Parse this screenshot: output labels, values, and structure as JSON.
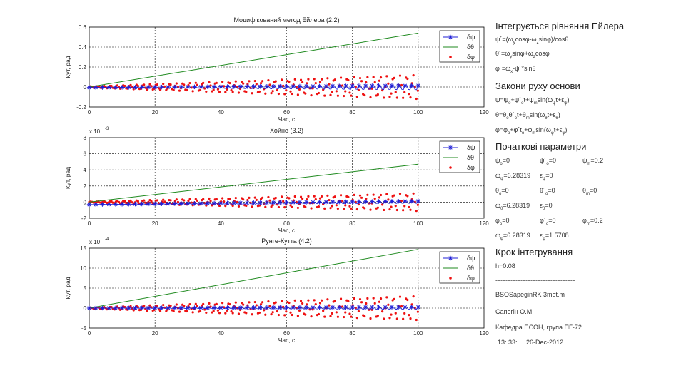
{
  "colors": {
    "dpsi": "#1f1fd6",
    "dtheta": "#1f8a1f",
    "dphi": "#ee1111",
    "grid": "#000000",
    "text": "#222222"
  },
  "chart_data": [
    {
      "type": "line",
      "title": "Модифікований метод Ейлера (2.2)",
      "xlabel": "Час, с",
      "ylabel": "Кут, рад",
      "exponent_label": "",
      "xlim": [
        0,
        120
      ],
      "ylim": [
        -0.2,
        0.6
      ],
      "xticks": [
        "0",
        "20",
        "40",
        "60",
        "80",
        "100",
        "120"
      ],
      "yticks": [
        "-0.2",
        "0",
        "0.2",
        "0.4",
        "0.6"
      ],
      "ytick_values": [
        -0.2,
        0,
        0.2,
        0.4,
        0.6
      ],
      "grid": true,
      "legend_position": "top-right",
      "series": [
        {
          "name": "δψ",
          "marker": "star",
          "x": [
            0,
            100
          ],
          "y": [
            -0.005,
            -0.005
          ],
          "amplitude_end": 0.03
        },
        {
          "name": "δθ",
          "marker": "none",
          "x": [
            0,
            100
          ],
          "y": [
            0.0,
            0.54
          ]
        },
        {
          "name": "δφ",
          "marker": "dot",
          "x": [
            0,
            100
          ],
          "y": [
            0.0,
            0.0
          ],
          "amplitude_end": 0.12
        }
      ]
    },
    {
      "type": "line",
      "title": "Хойне (3.2)",
      "xlabel": "Час, с",
      "ylabel": "Кут, рад",
      "exponent_label": "x 10",
      "exponent_power": "-3",
      "xlim": [
        0,
        120
      ],
      "ylim": [
        -2,
        8
      ],
      "xticks": [
        "0",
        "20",
        "40",
        "60",
        "80",
        "100",
        "120"
      ],
      "yticks": [
        "-2",
        "0",
        "2",
        "4",
        "6",
        "8"
      ],
      "ytick_values": [
        -2,
        0,
        2,
        4,
        6,
        8
      ],
      "grid": true,
      "legend_position": "top-right",
      "series": [
        {
          "name": "δψ",
          "marker": "star",
          "x": [
            0,
            100
          ],
          "y": [
            -0.3,
            0.0
          ],
          "amplitude_end": 0.2
        },
        {
          "name": "δθ",
          "marker": "none",
          "x": [
            0,
            100
          ],
          "y": [
            0.0,
            4.7
          ]
        },
        {
          "name": "δφ",
          "marker": "dot",
          "x": [
            0,
            100
          ],
          "y": [
            0.0,
            0.0
          ],
          "amplitude_end": 1.1
        }
      ]
    },
    {
      "type": "line",
      "title": "Рунге-Кутта (4.2)",
      "xlabel": "Час, с",
      "ylabel": "Кут, рад",
      "exponent_label": "x 10",
      "exponent_power": "-4",
      "xlim": [
        0,
        120
      ],
      "ylim": [
        -5,
        15
      ],
      "xticks": [
        "0",
        "20",
        "40",
        "60",
        "80",
        "100",
        "120"
      ],
      "yticks": [
        "-5",
        "0",
        "5",
        "10",
        "15"
      ],
      "ytick_values": [
        -5,
        0,
        5,
        10,
        15
      ],
      "grid": true,
      "legend_position": "top-right",
      "series": [
        {
          "name": "δψ",
          "marker": "star",
          "x": [
            0,
            100
          ],
          "y": [
            0.0,
            0.0
          ],
          "amplitude_end": 0.4
        },
        {
          "name": "δθ",
          "marker": "none",
          "x": [
            0,
            100
          ],
          "y": [
            0.0,
            14.7
          ]
        },
        {
          "name": "δφ",
          "marker": "dot",
          "x": [
            0,
            100
          ],
          "y": [
            0.0,
            0.0
          ],
          "amplitude_end": 3.0
        }
      ]
    }
  ],
  "panel": {
    "h_equations": "Інтегрується рівняння Ейлера",
    "h_laws": "Закони руху основи",
    "h_initial": "Початкові параметри",
    "h_step": "Крок інтегрування",
    "step": "h=0.08",
    "separator": "--------------------------------",
    "file": "BSOSapeginRK 3met.m",
    "author": "Сапегін О.М.",
    "department": "Кафедра ПСОН, група ПГ-72",
    "time": "13: 33:",
    "date": "26-Dec-2012",
    "initial": {
      "psi0": "=0",
      "dpsi0": "=0",
      "psim": "=0.2",
      "om_psi": "=6.28319",
      "eps_psi": "=0",
      "theta0": "=0",
      "dtheta0": "=0",
      "thetam": "=0",
      "om_theta": "=6.28319",
      "eps_theta": "=0",
      "phi0": "=0",
      "dphi0": "=0",
      "phim": "=0.2",
      "om_phi": "=6.28319",
      "eps_phi": "=1.5708"
    }
  }
}
